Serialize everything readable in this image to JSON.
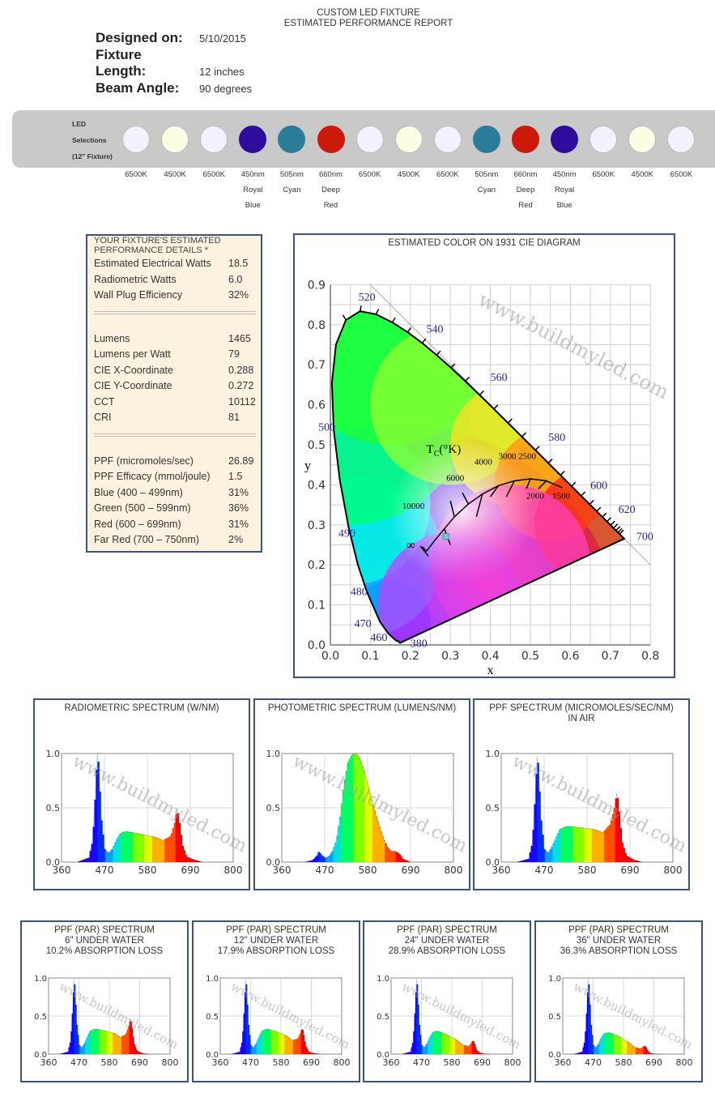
{
  "header": {
    "line1": "CUSTOM LED FIXTURE",
    "line2": "ESTIMATED PERFORMANCE REPORT"
  },
  "meta": {
    "designed_label": "Designed on:",
    "designed_value": "5/10/2015",
    "fixture_label": "Fixture",
    "length_label": "Length:",
    "length_value": "12 inches",
    "beam_label": "Beam Angle:",
    "beam_value": "90 degrees"
  },
  "led_bar": {
    "label_lines": [
      "LED",
      "Selections",
      "(12\" Fixture)"
    ],
    "leds": [
      {
        "color": "#f2f2fd",
        "lines": [
          "6500K"
        ]
      },
      {
        "color": "#fdfde3",
        "lines": [
          "4500K"
        ]
      },
      {
        "color": "#f2f2fd",
        "lines": [
          "6500K"
        ]
      },
      {
        "color": "#2e0d9c",
        "lines": [
          "450nm",
          "Royal",
          "Blue"
        ]
      },
      {
        "color": "#2a7c99",
        "lines": [
          "505nm",
          "Cyan"
        ]
      },
      {
        "color": "#cc1a0a",
        "lines": [
          "660nm",
          "Deep",
          "Red"
        ]
      },
      {
        "color": "#f2f2fd",
        "lines": [
          "6500K"
        ]
      },
      {
        "color": "#fdfde3",
        "lines": [
          "4500K"
        ]
      },
      {
        "color": "#f2f2fd",
        "lines": [
          "6500K"
        ]
      },
      {
        "color": "#2a7c99",
        "lines": [
          "505nm",
          "Cyan"
        ]
      },
      {
        "color": "#cc1a0a",
        "lines": [
          "660nm",
          "Deep",
          "Red"
        ]
      },
      {
        "color": "#2e0d9c",
        "lines": [
          "450nm",
          "Royal",
          "Blue"
        ]
      },
      {
        "color": "#f2f2fd",
        "lines": [
          "6500K"
        ]
      },
      {
        "color": "#fdfde3",
        "lines": [
          "4500K"
        ]
      },
      {
        "color": "#f2f2fd",
        "lines": [
          "6500K"
        ]
      }
    ]
  },
  "details": {
    "title_line1": "YOUR FIXTURE'S ESTIMATED",
    "title_line2": "PERFORMANCE DETAILS *",
    "groups": [
      [
        {
          "label": "Estimated Electrical Watts",
          "value": "18.5"
        },
        {
          "label": "Radiometric Watts",
          "value": "6.0"
        },
        {
          "label": "Wall Plug Efficiency",
          "value": "32%"
        }
      ],
      [
        {
          "label": "Lumens",
          "value": "1465"
        },
        {
          "label": "Lumens per Watt",
          "value": "79"
        },
        {
          "label": "CIE X-Coordinate",
          "value": "0.288"
        },
        {
          "label": "CIE Y-Coordinate",
          "value": "0.272"
        },
        {
          "label": "CCT",
          "value": "10112"
        },
        {
          "label": "CRI",
          "value": "81"
        }
      ],
      [
        {
          "label": "PPF (micromoles/sec)",
          "value": "26.89"
        },
        {
          "label": "PPF Efficacy (mmol/joule)",
          "value": "1.5"
        },
        {
          "label": "Blue (400 – 499nm)",
          "value": "31%"
        },
        {
          "label": "Green (500 – 599nm)",
          "value": "36%"
        },
        {
          "label": "Red (600 – 699nm)",
          "value": "31%"
        },
        {
          "label": "Far Red (700 – 750nm)",
          "value": "2%"
        }
      ]
    ]
  },
  "cie": {
    "title": "ESTIMATED COLOR ON 1931 CIE DIAGRAM",
    "watermark": "www.buildmyled.com",
    "xlabel": "x",
    "ylabel": "y",
    "x_ticks": [
      "0.0",
      "0.1",
      "0.2",
      "0.3",
      "0.4",
      "0.5",
      "0.6",
      "0.7",
      "0.8"
    ],
    "y_ticks": [
      "0.0",
      "0.1",
      "0.2",
      "0.3",
      "0.4",
      "0.5",
      "0.6",
      "0.7",
      "0.8",
      "0.9"
    ],
    "tc_label": "T",
    "tc_sub": "C",
    "tc_unit": "(°K)",
    "cct_labels": [
      "10000",
      "6000",
      "4000",
      "3000",
      "2500",
      "2000",
      "1500",
      "∞"
    ],
    "wavelength_labels": [
      "380",
      "460",
      "470",
      "480",
      "490",
      "500",
      "520",
      "540",
      "560",
      "580",
      "600",
      "620",
      "700"
    ],
    "fixture_point": {
      "x": 0.288,
      "y": 0.272
    }
  },
  "chart_data": [
    {
      "type": "area",
      "title": "RADIOMETRIC SPECTRUM (W/NM)",
      "x_ticks": [
        "360",
        "470",
        "580",
        "690",
        "800"
      ],
      "y_ticks": [
        "0.0",
        "0.5",
        "1.0"
      ],
      "xlim": [
        360,
        800
      ],
      "ylim": [
        0,
        1
      ],
      "x": [
        400,
        430,
        440,
        448,
        452,
        456,
        460,
        470,
        480,
        490,
        500,
        510,
        520,
        530,
        560,
        600,
        620,
        640,
        650,
        656,
        660,
        664,
        670,
        680,
        700,
        720
      ],
      "values": [
        0,
        0.04,
        0.2,
        0.7,
        1.0,
        0.85,
        0.45,
        0.12,
        0.08,
        0.12,
        0.2,
        0.26,
        0.28,
        0.28,
        0.26,
        0.23,
        0.2,
        0.24,
        0.36,
        0.48,
        0.42,
        0.3,
        0.15,
        0.05,
        0.02,
        0
      ]
    },
    {
      "type": "area",
      "title": "PHOTOMETRIC SPECTRUM (LUMENS/NM)",
      "x_ticks": [
        "360",
        "470",
        "580",
        "690",
        "800"
      ],
      "y_ticks": [
        "0.0",
        "0.5",
        "1.0"
      ],
      "xlim": [
        360,
        800
      ],
      "ylim": [
        0,
        1
      ],
      "x": [
        420,
        440,
        450,
        455,
        460,
        470,
        480,
        490,
        500,
        510,
        520,
        530,
        540,
        550,
        555,
        560,
        570,
        580,
        590,
        600,
        610,
        620,
        630,
        640,
        650,
        660,
        670,
        690
      ],
      "values": [
        0,
        0.02,
        0.06,
        0.1,
        0.07,
        0.04,
        0.05,
        0.1,
        0.2,
        0.42,
        0.72,
        0.92,
        0.99,
        1.0,
        0.98,
        0.95,
        0.85,
        0.72,
        0.58,
        0.45,
        0.33,
        0.22,
        0.14,
        0.1,
        0.1,
        0.08,
        0.03,
        0
      ]
    },
    {
      "type": "area",
      "title_lines": [
        "PPF SPECTRUM (MICROMOLES/SEC/NM)",
        "IN AIR"
      ],
      "x_ticks": [
        "360",
        "470",
        "580",
        "690",
        "800"
      ],
      "y_ticks": [
        "0.0",
        "0.5",
        "1.0"
      ],
      "xlim": [
        360,
        800
      ],
      "ylim": [
        0,
        1
      ],
      "x": [
        400,
        430,
        440,
        448,
        452,
        456,
        460,
        470,
        480,
        490,
        500,
        510,
        520,
        530,
        560,
        600,
        620,
        640,
        650,
        656,
        660,
        664,
        670,
        680,
        700,
        720
      ],
      "values": [
        0,
        0.03,
        0.18,
        0.65,
        0.98,
        0.85,
        0.45,
        0.12,
        0.08,
        0.14,
        0.22,
        0.3,
        0.32,
        0.33,
        0.32,
        0.3,
        0.27,
        0.35,
        0.5,
        0.63,
        0.55,
        0.38,
        0.18,
        0.06,
        0.02,
        0
      ]
    },
    {
      "type": "area",
      "title_lines": [
        "PPF (PAR) SPECTRUM",
        "6\" UNDER WATER",
        "10.2% ABSORPTION LOSS"
      ],
      "x_ticks": [
        "360",
        "470",
        "580",
        "690",
        "800"
      ],
      "y_ticks": [
        "0.0",
        "0.5",
        "1.0"
      ],
      "xlim": [
        360,
        800
      ],
      "ylim": [
        0,
        1
      ],
      "x": [
        400,
        430,
        440,
        448,
        452,
        456,
        460,
        470,
        480,
        490,
        500,
        510,
        520,
        530,
        560,
        600,
        620,
        640,
        650,
        656,
        660,
        664,
        670,
        680,
        700,
        720
      ],
      "values": [
        0,
        0.03,
        0.18,
        0.65,
        0.98,
        0.85,
        0.45,
        0.12,
        0.08,
        0.14,
        0.22,
        0.3,
        0.32,
        0.33,
        0.31,
        0.27,
        0.22,
        0.26,
        0.36,
        0.46,
        0.4,
        0.28,
        0.13,
        0.04,
        0.01,
        0
      ]
    },
    {
      "type": "area",
      "title_lines": [
        "PPF (PAR) SPECTRUM",
        "12\" UNDER WATER",
        "17.9% ABSORPTION LOSS"
      ],
      "x_ticks": [
        "360",
        "470",
        "580",
        "690",
        "800"
      ],
      "y_ticks": [
        "0.0",
        "0.5",
        "1.0"
      ],
      "xlim": [
        360,
        800
      ],
      "ylim": [
        0,
        1
      ],
      "x": [
        400,
        430,
        440,
        448,
        452,
        456,
        460,
        470,
        480,
        490,
        500,
        510,
        520,
        530,
        560,
        600,
        620,
        640,
        650,
        656,
        660,
        664,
        670,
        680,
        700,
        720
      ],
      "values": [
        0,
        0.03,
        0.18,
        0.65,
        0.98,
        0.85,
        0.45,
        0.12,
        0.08,
        0.14,
        0.22,
        0.3,
        0.32,
        0.33,
        0.3,
        0.24,
        0.18,
        0.2,
        0.27,
        0.34,
        0.3,
        0.2,
        0.1,
        0.03,
        0.01,
        0
      ]
    },
    {
      "type": "area",
      "title_lines": [
        "PPF (PAR) SPECTRUM",
        "24\" UNDER WATER",
        "28.9% ABSORPTION LOSS"
      ],
      "x_ticks": [
        "360",
        "470",
        "580",
        "690",
        "800"
      ],
      "y_ticks": [
        "0.0",
        "0.5",
        "1.0"
      ],
      "xlim": [
        360,
        800
      ],
      "ylim": [
        0,
        1
      ],
      "x": [
        400,
        430,
        440,
        448,
        452,
        456,
        460,
        470,
        480,
        490,
        500,
        510,
        520,
        530,
        560,
        600,
        620,
        640,
        650,
        656,
        660,
        664,
        670,
        680,
        700,
        720
      ],
      "values": [
        0,
        0.03,
        0.18,
        0.65,
        0.98,
        0.85,
        0.45,
        0.12,
        0.08,
        0.14,
        0.22,
        0.28,
        0.3,
        0.3,
        0.26,
        0.18,
        0.12,
        0.1,
        0.14,
        0.18,
        0.16,
        0.11,
        0.05,
        0.02,
        0,
        0
      ]
    },
    {
      "type": "area",
      "title_lines": [
        "PPF (PAR) SPECTRUM",
        "36\" UNDER WATER",
        "36.3% ABSORPTION LOSS"
      ],
      "x_ticks": [
        "360",
        "470",
        "580",
        "690",
        "800"
      ],
      "y_ticks": [
        "0.0",
        "0.5",
        "1.0"
      ],
      "xlim": [
        360,
        800
      ],
      "ylim": [
        0,
        1
      ],
      "x": [
        400,
        430,
        440,
        448,
        452,
        456,
        460,
        470,
        480,
        490,
        500,
        510,
        520,
        530,
        560,
        600,
        620,
        640,
        650,
        656,
        660,
        664,
        670,
        680,
        700,
        720
      ],
      "values": [
        0,
        0.03,
        0.18,
        0.65,
        0.98,
        0.85,
        0.45,
        0.12,
        0.08,
        0.14,
        0.22,
        0.27,
        0.28,
        0.28,
        0.24,
        0.15,
        0.09,
        0.07,
        0.09,
        0.11,
        0.1,
        0.07,
        0.03,
        0.01,
        0,
        0
      ]
    }
  ]
}
